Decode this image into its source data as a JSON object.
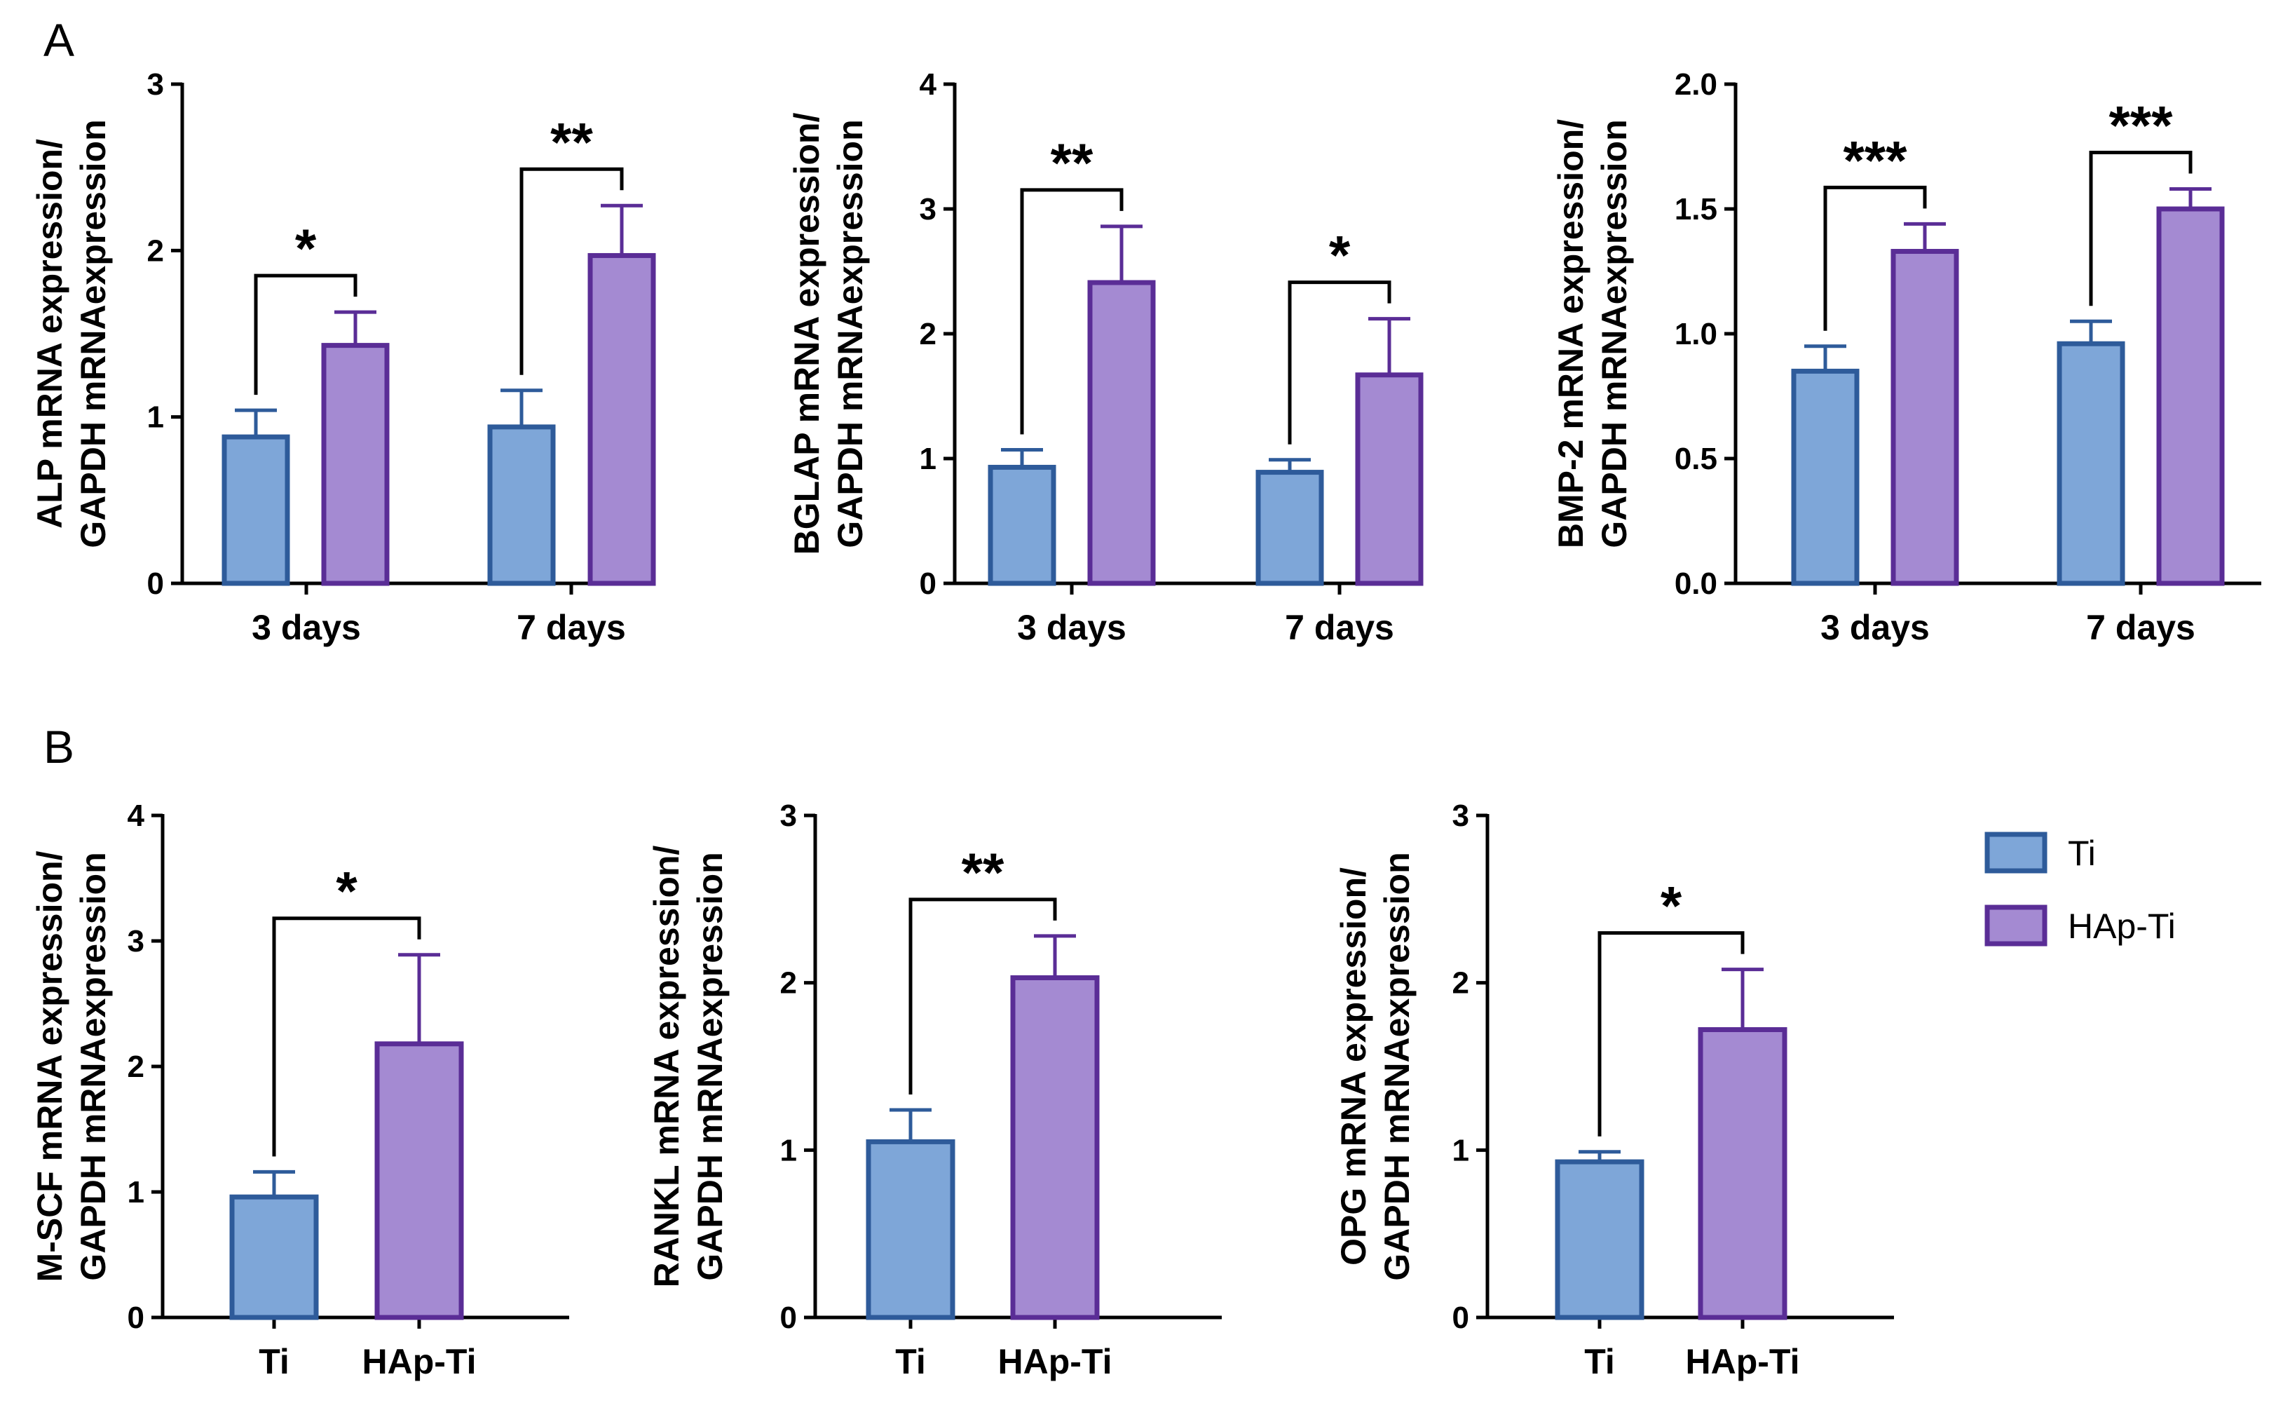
{
  "panel_labels": {
    "a": "A",
    "b": "B"
  },
  "colors": {
    "ti_fill": "#7ea6d8",
    "ti_stroke": "#2e5b9a",
    "hap_fill": "#a48ad2",
    "hap_stroke": "#5a2d96"
  },
  "legend": {
    "ti": "Ti",
    "hap": "HAp-Ti"
  },
  "chart_data": [
    {
      "type": "bar",
      "panel": "A",
      "ylabel": [
        "ALP mRNA expression/",
        "GAPDH mRNAexpression"
      ],
      "categories": [
        "3 days",
        "7 days"
      ],
      "ylim": [
        0,
        3
      ],
      "yticks": [
        "0",
        "1",
        "2",
        "3"
      ],
      "series": [
        {
          "name": "Ti",
          "values": [
            0.88,
            0.94
          ],
          "errors": [
            0.16,
            0.22
          ]
        },
        {
          "name": "HAp-Ti",
          "values": [
            1.43,
            1.97
          ],
          "errors": [
            0.2,
            0.3
          ]
        }
      ],
      "significance": [
        "*",
        "**"
      ]
    },
    {
      "type": "bar",
      "panel": "A",
      "ylabel": [
        "BGLAP mRNA expression/",
        "GAPDH mRNAexpression"
      ],
      "categories": [
        "3 days",
        "7 days"
      ],
      "ylim": [
        0,
        4
      ],
      "yticks": [
        "0",
        "1",
        "2",
        "3",
        "4"
      ],
      "series": [
        {
          "name": "Ti",
          "values": [
            0.93,
            0.89
          ],
          "errors": [
            0.14,
            0.1
          ]
        },
        {
          "name": "HAp-Ti",
          "values": [
            2.41,
            1.67
          ],
          "errors": [
            0.45,
            0.45
          ]
        }
      ],
      "significance": [
        "**",
        "*"
      ]
    },
    {
      "type": "bar",
      "panel": "A",
      "ylabel": [
        "BMP-2 mRNA expression/",
        "GAPDH mRNAexpression"
      ],
      "categories": [
        "3 days",
        "7 days"
      ],
      "ylim": [
        0,
        2
      ],
      "yticks": [
        "0.0",
        "0.5",
        "1.0",
        "1.5",
        "2.0"
      ],
      "series": [
        {
          "name": "Ti",
          "values": [
            0.85,
            0.96
          ],
          "errors": [
            0.1,
            0.09
          ]
        },
        {
          "name": "HAp-Ti",
          "values": [
            1.33,
            1.5
          ],
          "errors": [
            0.11,
            0.08
          ]
        }
      ],
      "significance": [
        "***",
        "***"
      ]
    },
    {
      "type": "bar",
      "panel": "B",
      "ylabel": [
        "M-SCF mRNA expression/",
        "GAPDH mRNAexpression"
      ],
      "categories": [
        "Ti",
        "HAp-Ti"
      ],
      "ylim": [
        0,
        4
      ],
      "yticks": [
        "0",
        "1",
        "2",
        "3",
        "4"
      ],
      "values": [
        0.96,
        2.18
      ],
      "errors": [
        0.2,
        0.71
      ],
      "significance": [
        "*"
      ]
    },
    {
      "type": "bar",
      "panel": "B",
      "ylabel": [
        "RANKL mRNA expression/",
        "GAPDH mRNAexpression"
      ],
      "categories": [
        "Ti",
        "HAp-Ti"
      ],
      "ylim": [
        0,
        3
      ],
      "yticks": [
        "0",
        "1",
        "2",
        "3"
      ],
      "values": [
        1.05,
        2.03
      ],
      "errors": [
        0.19,
        0.25
      ],
      "significance": [
        "**"
      ]
    },
    {
      "type": "bar",
      "panel": "B",
      "ylabel": [
        "OPG mRNA expression/",
        "GAPDH mRNAexpression"
      ],
      "categories": [
        "Ti",
        "HAp-Ti"
      ],
      "ylim": [
        0,
        3
      ],
      "yticks": [
        "0",
        "1",
        "2",
        "3"
      ],
      "values": [
        0.93,
        1.72
      ],
      "errors": [
        0.06,
        0.36
      ],
      "significance": [
        "*"
      ]
    }
  ]
}
